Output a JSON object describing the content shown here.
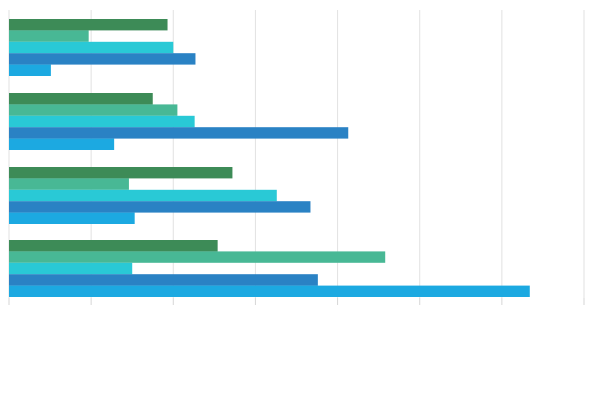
{
  "chart_data": {
    "type": "bar",
    "orientation": "horizontal",
    "title": "",
    "xlabel": "",
    "ylabel": "",
    "xlim": [
      0,
      7
    ],
    "grid": true,
    "legend": "none",
    "categories": [
      "",
      "",
      "",
      ""
    ],
    "series": [
      {
        "color": "#3d8b57",
        "values": [
          1.93,
          1.75,
          2.72,
          2.54
        ]
      },
      {
        "color": "#48b895",
        "values": [
          0.97,
          2.05,
          1.46,
          4.58
        ]
      },
      {
        "color": "#29c9d6",
        "values": [
          2.0,
          2.26,
          3.26,
          1.5
        ]
      },
      {
        "color": "#2a82c4",
        "values": [
          2.27,
          4.13,
          3.67,
          3.76
        ]
      },
      {
        "color": "#1ca9e1",
        "values": [
          0.51,
          1.28,
          1.53,
          6.34
        ]
      }
    ]
  }
}
